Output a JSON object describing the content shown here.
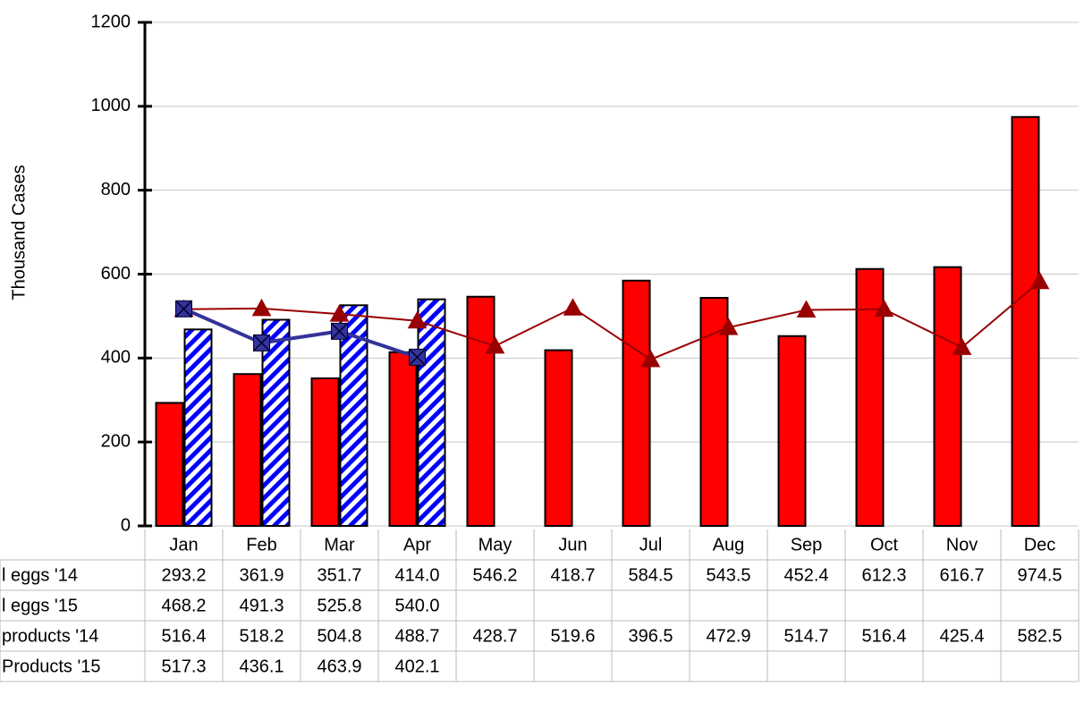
{
  "chart_data": {
    "type": "bar_line_table",
    "ylabel": "Thousand Cases",
    "categories": [
      "Jan",
      "Feb",
      "Mar",
      "Apr",
      "May",
      "Jun",
      "Jul",
      "Aug",
      "Sep",
      "Oct",
      "Nov",
      "Dec"
    ],
    "ylim": [
      0,
      1200
    ],
    "yticks": [
      0,
      200,
      400,
      600,
      800,
      1000,
      1200
    ],
    "grid": true,
    "series": [
      {
        "name": "l eggs '14",
        "kind": "bar",
        "color": "#ff0000",
        "values": [
          293.2,
          361.9,
          351.7,
          414.0,
          546.2,
          418.7,
          584.5,
          543.5,
          452.4,
          612.3,
          616.7,
          974.5
        ],
        "value_labels": [
          "293.2",
          "361.9",
          "351.7",
          "414.0",
          "546.2",
          "418.7",
          "584.5",
          "543.5",
          "452.4",
          "612.3",
          "616.7",
          "974.5"
        ]
      },
      {
        "name": "l eggs '15",
        "kind": "hatched-bar",
        "color": "#0000ff",
        "values": [
          468.2,
          491.3,
          525.8,
          540.0,
          null,
          null,
          null,
          null,
          null,
          null,
          null,
          null
        ],
        "value_labels": [
          "468.2",
          "491.3",
          "525.8",
          "540.0",
          null,
          null,
          null,
          null,
          null,
          null,
          null,
          null
        ]
      },
      {
        "name": "products '14",
        "kind": "line",
        "marker": "triangle",
        "color": "#990000",
        "values": [
          516.4,
          518.2,
          504.8,
          488.7,
          428.7,
          519.6,
          396.5,
          472.9,
          514.7,
          516.4,
          425.4,
          582.5
        ],
        "value_labels": [
          "516.4",
          "518.2",
          "504.8",
          "488.7",
          "428.7",
          "519.6",
          "396.5",
          "472.9",
          "514.7",
          "516.4",
          "425.4",
          "582.5"
        ]
      },
      {
        "name": "Products '15",
        "kind": "line",
        "marker": "square",
        "color": "#333399",
        "values": [
          517.3,
          436.1,
          463.9,
          402.1,
          null,
          null,
          null,
          null,
          null,
          null,
          null,
          null
        ],
        "value_labels": [
          "517.3",
          "436.1",
          "463.9",
          "402.1",
          null,
          null,
          null,
          null,
          null,
          null,
          null,
          null
        ]
      }
    ]
  }
}
